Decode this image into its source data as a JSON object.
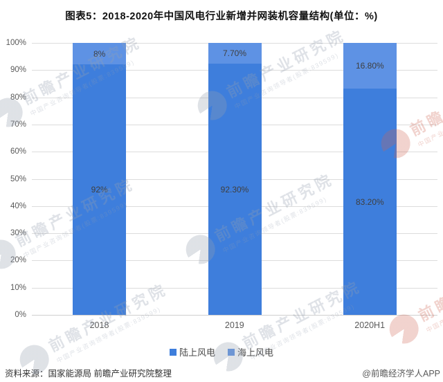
{
  "title": "图表5：2018-2020年中国风电行业新增并网装机容量结构(单位：%)",
  "chart_data": {
    "type": "bar",
    "stacked": true,
    "orientation": "vertical",
    "categories": [
      "2018",
      "2019",
      "2020H1"
    ],
    "series": [
      {
        "name": "陆上风电",
        "color": "#3e7edc",
        "values": [
          92,
          92.3,
          83.2
        ],
        "labels": [
          "92%",
          "92.30%",
          "83.20%"
        ]
      },
      {
        "name": "海上风电",
        "color": "#5e92e4",
        "values": [
          8,
          7.7,
          16.8
        ],
        "labels": [
          "8%",
          "7.70%",
          "16.80%"
        ]
      }
    ],
    "y_ticks_top_down": [
      "100%",
      "90%",
      "80%",
      "70%",
      "60%",
      "50%",
      "40%",
      "30%",
      "20%",
      "10%",
      "0%"
    ],
    "ylim": [
      0,
      100
    ],
    "grid": true,
    "legend_position": "bottom"
  },
  "watermark": {
    "big_text": "前瞻产业研究院",
    "small_text": "中国产业咨询领导者(股票:839599)",
    "globe_icon": "qianzhan-globe-icon"
  },
  "footer": {
    "source": "资料来源：国家能源局 前瞻产业研究院整理",
    "credit": "@前瞻经济学人APP"
  },
  "colors": {
    "onshore": "#3e7edc",
    "offshore": "#5e92e4",
    "grid": "#dcdcdc",
    "axis_text": "#595959",
    "value_text": "#3f3f3f",
    "title_text": "#111111"
  }
}
